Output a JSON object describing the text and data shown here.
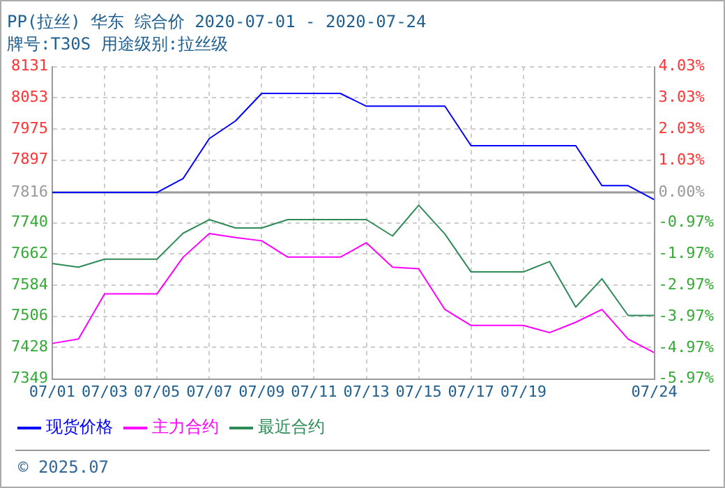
{
  "chart_data": {
    "type": "line",
    "title": "PP(拉丝) 华东 综合价 2020-07-01 - 2020-07-24",
    "subtitle": "牌号:T30S 用途级别:拉丝级",
    "x": [
      "--07-01",
      "--07-02",
      "--07-03",
      "--07-04",
      "--07-05",
      "--07-06",
      "--07-07",
      "--07-08",
      "--07-09",
      "--07-10",
      "--07-11",
      "--07-12",
      "--07-13",
      "--07-14",
      "--07-15",
      "--07-16",
      "--07-17",
      "--07-18",
      "--07-19",
      "--07-20",
      "--07-21",
      "--07-22",
      "--07-23",
      "--07-24"
    ],
    "series": [
      {
        "name": "现货价格",
        "color": "#0000ff",
        "values": [
          7816,
          7816,
          7816,
          7816,
          7816,
          7851,
          7951,
          7995,
          8064,
          8064,
          8064,
          8064,
          8032,
          8032,
          8032,
          8032,
          7933,
          7933,
          7933,
          7933,
          7933,
          7833,
          7833,
          7798
        ]
      },
      {
        "name": "主力合约",
        "color": "#ff00ff",
        "values": [
          7438,
          7449,
          7562,
          7562,
          7562,
          7654,
          7713,
          7703,
          7695,
          7654,
          7654,
          7654,
          7690,
          7629,
          7625,
          7523,
          7483,
          7483,
          7483,
          7465,
          7491,
          7523,
          7449,
          7415
        ]
      },
      {
        "name": "最近合约",
        "color": "#2e8b57",
        "values": [
          7638,
          7629,
          7649,
          7649,
          7649,
          7714,
          7748,
          7727,
          7727,
          7748,
          7748,
          7748,
          7748,
          7707,
          7784,
          7712,
          7617,
          7617,
          7617,
          7643,
          7529,
          7600,
          7508,
          7508
        ]
      }
    ],
    "xlim": [
      "--07-01",
      "--07-24"
    ],
    "xticks": [
      {
        "value": "--07-01",
        "label": "07/01"
      },
      {
        "value": "--07-03",
        "label": "07/03"
      },
      {
        "value": "--07-05",
        "label": "07/05"
      },
      {
        "value": "--07-07",
        "label": "07/07"
      },
      {
        "value": "--07-09",
        "label": "07/09"
      },
      {
        "value": "--07-11",
        "label": "07/11"
      },
      {
        "value": "--07-13",
        "label": "07/13"
      },
      {
        "value": "--07-15",
        "label": "07/15"
      },
      {
        "value": "--07-17",
        "label": "07/17"
      },
      {
        "value": "--07-19",
        "label": "07/19"
      },
      {
        "value": "--07-24",
        "label": "07/24"
      }
    ],
    "ylim": [
      7349,
      8131
    ],
    "yticks": [
      8131,
      8053,
      7975,
      7897,
      7816,
      7740,
      7662,
      7584,
      7506,
      7428,
      7349
    ],
    "y2lim": [
      -5.97,
      4.03
    ],
    "y2ticks": [
      {
        "value": 4.03,
        "label": "4.03%"
      },
      {
        "value": 3.03,
        "label": "3.03%"
      },
      {
        "value": 2.03,
        "label": "2.03%"
      },
      {
        "value": 1.03,
        "label": "1.03%"
      },
      {
        "value": 0,
        "label": "0.00%"
      },
      {
        "value": -0.97,
        "label": "-0.97%"
      },
      {
        "value": -1.97,
        "label": "-1.97%"
      },
      {
        "value": -2.97,
        "label": "-2.97%"
      },
      {
        "value": -3.97,
        "label": "-3.97%"
      },
      {
        "value": -4.97,
        "label": "-4.97%"
      },
      {
        "value": -5.97,
        "label": "-5.97%"
      }
    ],
    "ref_lines": [
      {
        "axis": "y",
        "value": 7816,
        "color": "#999999"
      }
    ],
    "annotations": [
      "© 2025.07"
    ],
    "grid": true,
    "legend": "bottom",
    "marker": "none"
  }
}
